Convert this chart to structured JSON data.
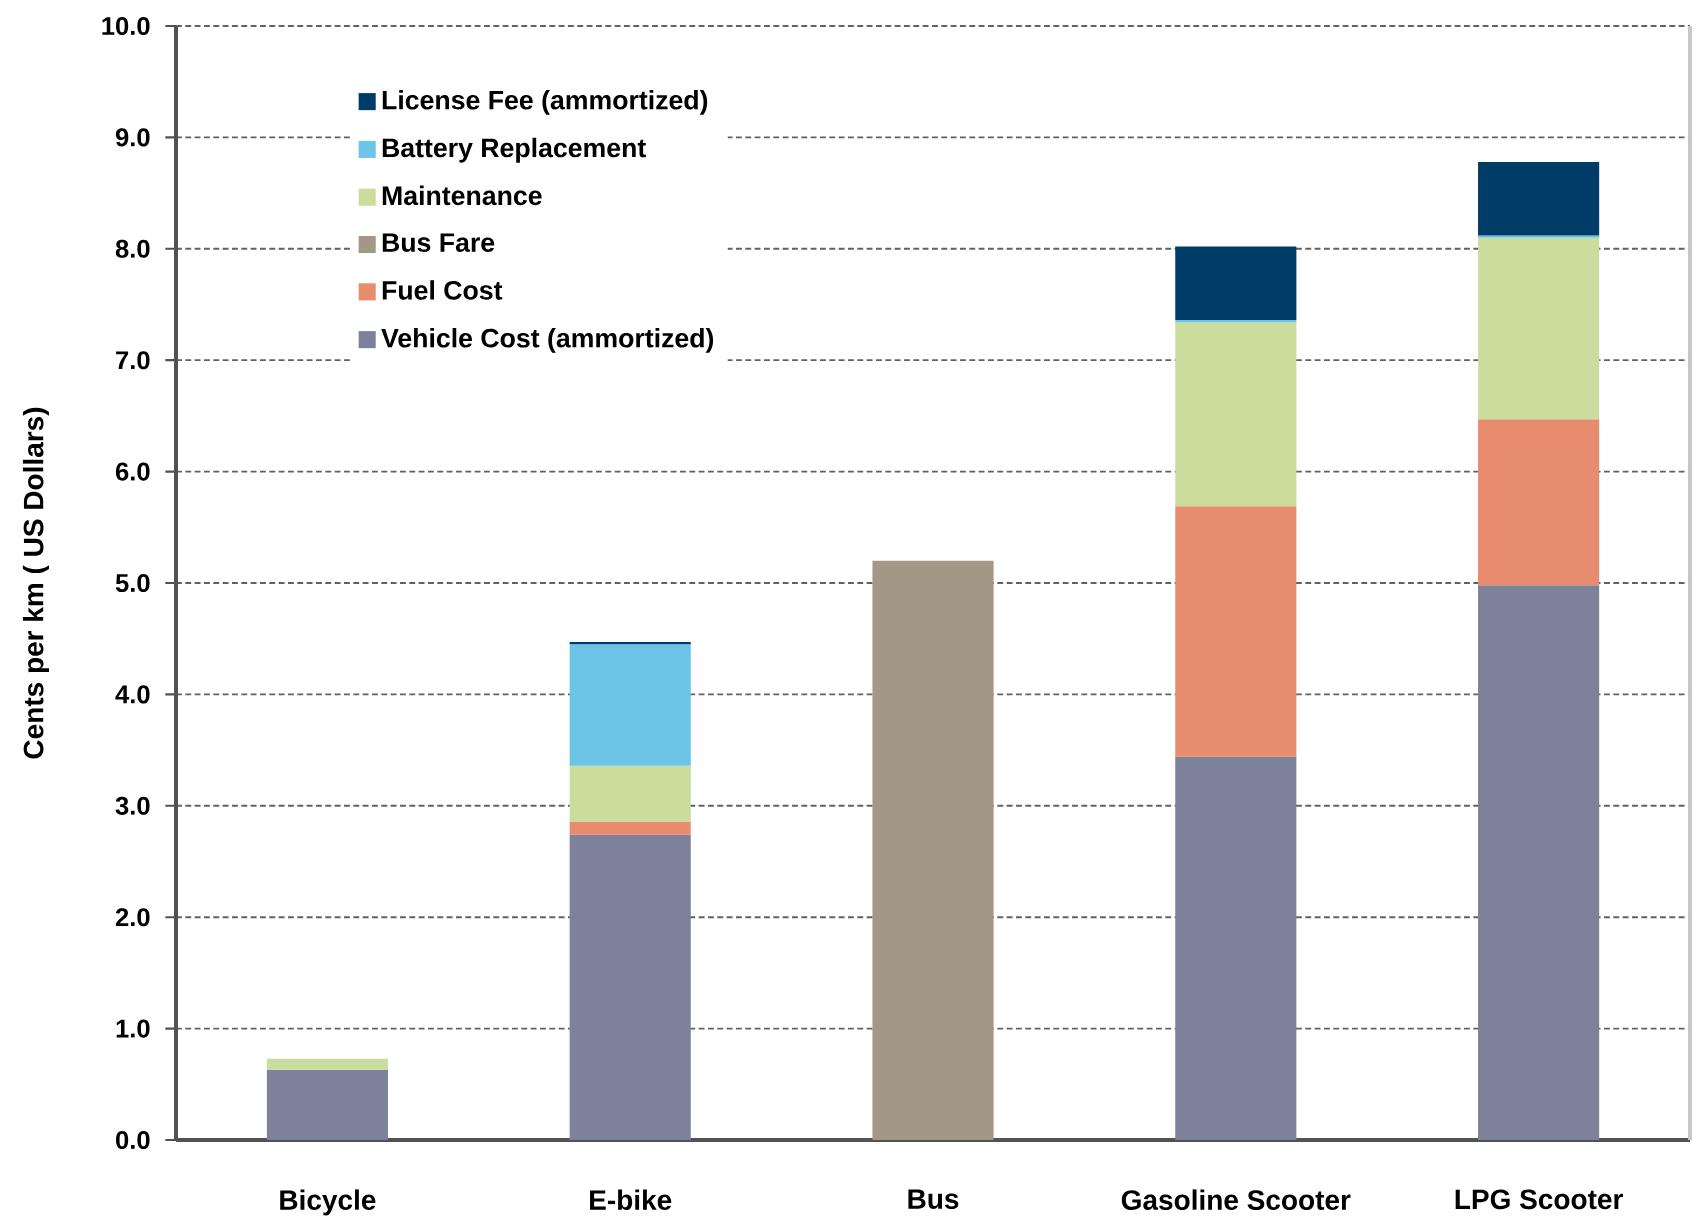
{
  "chart_data": {
    "type": "bar",
    "stacked": true,
    "ylabel": "Cents per km ( US Dollars)",
    "categories": [
      "Bicycle",
      "E-bike",
      "Bus",
      "Gasoline Scooter",
      "LPG Scooter"
    ],
    "series": [
      {
        "name": "Vehicle Cost (ammortized)",
        "color": "#7e819a",
        "values": [
          0.63,
          2.74,
          null,
          3.44,
          4.98
        ]
      },
      {
        "name": "Fuel Cost",
        "color": "#e88c70",
        "values": [
          null,
          0.12,
          null,
          2.25,
          1.49
        ]
      },
      {
        "name": "Bus Fare",
        "color": "#a39786",
        "values": [
          null,
          null,
          5.2,
          null,
          null
        ]
      },
      {
        "name": "Maintenance",
        "color": "#cbdd9c",
        "values": [
          0.1,
          0.5,
          null,
          1.65,
          1.63
        ]
      },
      {
        "name": "Battery Replacement",
        "color": "#6cc5e6",
        "values": [
          null,
          1.09,
          null,
          0.02,
          0.02
        ]
      },
      {
        "name": "License Fee (ammortized)",
        "color": "#003c68",
        "values": [
          null,
          0.02,
          null,
          0.66,
          0.66
        ]
      }
    ],
    "ylim": [
      0,
      10
    ],
    "yticks": [
      {
        "value": 0,
        "label": "0.0"
      },
      {
        "value": 1,
        "label": "1.0"
      },
      {
        "value": 2,
        "label": "2.0"
      },
      {
        "value": 3,
        "label": "3.0"
      },
      {
        "value": 4,
        "label": "4.0"
      },
      {
        "value": 5,
        "label": "5.0"
      },
      {
        "value": 6,
        "label": "6.0"
      },
      {
        "value": 7,
        "label": "7.0"
      },
      {
        "value": 8,
        "label": "8.0"
      },
      {
        "value": 9,
        "label": "9.0"
      },
      {
        "value": 10,
        "label": "10.0"
      }
    ],
    "grid": "y",
    "legend": "top left"
  }
}
